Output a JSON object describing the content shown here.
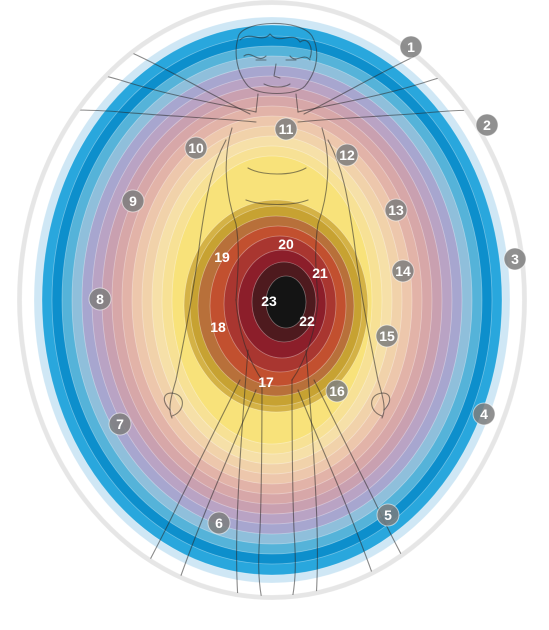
{
  "diagram": {
    "ring_colors": {
      "outer_white": "#ffffff",
      "pale_blue": "#cfe7f5",
      "bright_blue": "#29a7dd",
      "deep_blue": "#0d8fcc",
      "lavender": "#a7a6cf",
      "mauve": "#c9a0b0",
      "rose": "#d7a7a8",
      "peach": "#edc7ac",
      "cream": "#f6e0a8",
      "yellow": "#f8e27a",
      "ochre": "#c7a232",
      "orange_red": "#c2502f",
      "crimson": "#8c1e2a",
      "core_black": "#141414"
    },
    "figure_name": "vitruvian-man-outline",
    "markers": [
      {
        "id": "1",
        "label": "1"
      },
      {
        "id": "2",
        "label": "2"
      },
      {
        "id": "3",
        "label": "3"
      },
      {
        "id": "4",
        "label": "4"
      },
      {
        "id": "5",
        "label": "5"
      },
      {
        "id": "6",
        "label": "6"
      },
      {
        "id": "7",
        "label": "7"
      },
      {
        "id": "8",
        "label": "8"
      },
      {
        "id": "9",
        "label": "9"
      },
      {
        "id": "10",
        "label": "10"
      },
      {
        "id": "11",
        "label": "11"
      },
      {
        "id": "12",
        "label": "12"
      },
      {
        "id": "13",
        "label": "13"
      },
      {
        "id": "14",
        "label": "14"
      },
      {
        "id": "15",
        "label": "15"
      },
      {
        "id": "16",
        "label": "16"
      },
      {
        "id": "17",
        "label": "17"
      },
      {
        "id": "18",
        "label": "18"
      },
      {
        "id": "19",
        "label": "19"
      },
      {
        "id": "20",
        "label": "20"
      },
      {
        "id": "21",
        "label": "21"
      },
      {
        "id": "22",
        "label": "22"
      },
      {
        "id": "23",
        "label": "23"
      }
    ]
  }
}
